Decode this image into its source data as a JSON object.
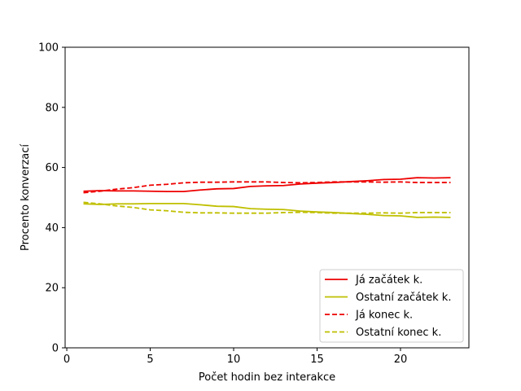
{
  "chart_data": {
    "type": "line",
    "title": "",
    "xlabel": "Počet hodin bez interakce",
    "ylabel": "Procento konverzací",
    "xlim": [
      -0.1,
      24.1
    ],
    "ylim": [
      0,
      100
    ],
    "xticks": [
      0,
      5,
      10,
      15,
      20
    ],
    "yticks": [
      0,
      20,
      40,
      60,
      80,
      100
    ],
    "xtick_labels": [
      "0",
      "5",
      "10",
      "15",
      "20"
    ],
    "ytick_labels": [
      "0",
      "20",
      "40",
      "60",
      "80",
      "100"
    ],
    "grid": false,
    "legend_position": "lower-right",
    "x": [
      1,
      2,
      3,
      4,
      5,
      6,
      7,
      8,
      9,
      10,
      11,
      12,
      13,
      14,
      15,
      16,
      17,
      18,
      19,
      20,
      21,
      22,
      23
    ],
    "series": [
      {
        "name": "Já začátek k.",
        "color": "#ee0000",
        "style": "solid",
        "values": [
          52.1,
          52.3,
          52.2,
          52.2,
          52.1,
          52.0,
          52.0,
          52.5,
          52.9,
          53.0,
          53.7,
          53.9,
          54.0,
          54.5,
          54.8,
          55.0,
          55.3,
          55.6,
          56.0,
          56.1,
          56.6,
          56.5,
          56.6
        ]
      },
      {
        "name": "Ostatní začátek k.",
        "color": "#bfbf00",
        "style": "solid",
        "values": [
          47.9,
          47.7,
          47.9,
          47.9,
          48.0,
          48.0,
          48.0,
          47.6,
          47.1,
          47.0,
          46.3,
          46.1,
          46.0,
          45.5,
          45.2,
          45.0,
          44.7,
          44.4,
          44.0,
          43.9,
          43.4,
          43.5,
          43.4
        ]
      },
      {
        "name": "Já konec k.",
        "color": "#ee0000",
        "style": "dashed",
        "values": [
          51.6,
          52.1,
          52.8,
          53.3,
          54.1,
          54.4,
          54.9,
          55.1,
          55.1,
          55.2,
          55.2,
          55.2,
          55.0,
          54.9,
          55.0,
          55.2,
          55.2,
          55.2,
          55.1,
          55.2,
          55.0,
          55.0,
          55.0
        ]
      },
      {
        "name": "Ostatní konec k.",
        "color": "#bfbf00",
        "style": "dashed",
        "values": [
          48.4,
          47.9,
          47.2,
          46.7,
          45.9,
          45.6,
          45.1,
          44.9,
          44.9,
          44.8,
          44.8,
          44.8,
          45.0,
          45.1,
          45.0,
          44.8,
          44.8,
          44.8,
          44.9,
          44.8,
          45.0,
          45.0,
          45.0
        ]
      }
    ]
  }
}
